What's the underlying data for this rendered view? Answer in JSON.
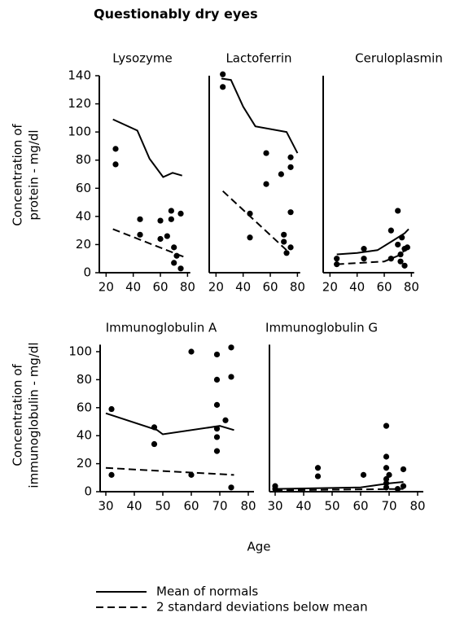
{
  "title": "Questionably dry eyes",
  "xlabel": "Age",
  "chart_data": [
    {
      "type": "line",
      "title": "Lysozyme",
      "ylabel": [
        "Concentration of",
        "protein - mg/dl"
      ],
      "xlim": [
        15,
        82
      ],
      "ylim": [
        0,
        140
      ],
      "xticks": [
        20,
        40,
        60,
        80
      ],
      "yticks": [
        0,
        20,
        40,
        60,
        80,
        100,
        120,
        140
      ],
      "series": [
        {
          "name": "Mean of normals",
          "style": "solid",
          "color": "#000",
          "x": [
            25,
            43,
            52,
            62,
            69,
            76
          ],
          "values": [
            109,
            101,
            81,
            68,
            71,
            69
          ]
        },
        {
          "name": "2 standard deviations below mean",
          "style": "dashed",
          "color": "#000",
          "x": [
            25,
            78
          ],
          "values": [
            31,
            11
          ]
        },
        {
          "style": "points",
          "color": "#000",
          "x": [
            27,
            27,
            45,
            45,
            60,
            60,
            65,
            68,
            68,
            70,
            70,
            72,
            75,
            75
          ],
          "values": [
            88,
            77,
            38,
            27,
            37,
            24,
            26,
            44,
            38,
            18,
            7,
            12,
            42,
            3
          ]
        }
      ]
    },
    {
      "type": "line",
      "title": "Lactoferrin",
      "xlim": [
        15,
        82
      ],
      "ylim": [
        0,
        140
      ],
      "xticks": [
        20,
        40,
        60,
        80
      ],
      "series": [
        {
          "name": "Mean of normals",
          "style": "solid",
          "color": "#000",
          "x": [
            24,
            31,
            40,
            49,
            72,
            80
          ],
          "values": [
            138,
            137,
            118,
            104,
            100,
            85
          ]
        },
        {
          "name": "2 standard deviations below mean",
          "style": "dashed",
          "color": "#000",
          "x": [
            25,
            72
          ],
          "values": [
            58,
            16
          ]
        },
        {
          "style": "points",
          "color": "#000",
          "x": [
            25,
            25,
            45,
            45,
            57,
            57,
            68,
            70,
            70,
            72,
            75,
            75,
            75,
            75
          ],
          "values": [
            141,
            132,
            42,
            25,
            63,
            85,
            70,
            22,
            27,
            14,
            18,
            75,
            82,
            43
          ]
        }
      ]
    },
    {
      "type": "line",
      "title": "Ceruloplasmin",
      "xlim": [
        15,
        82
      ],
      "ylim": [
        0,
        140
      ],
      "xticks": [
        20,
        40,
        60,
        80
      ],
      "series": [
        {
          "name": "Mean of normals",
          "style": "solid",
          "color": "#000",
          "x": [
            25,
            40,
            55,
            65,
            75,
            78
          ],
          "values": [
            13,
            14,
            16,
            22,
            28,
            31
          ]
        },
        {
          "name": "2 standard deviations below mean",
          "style": "dashed",
          "color": "#000",
          "x": [
            25,
            60,
            70,
            78
          ],
          "values": [
            6,
            8,
            12,
            18
          ]
        },
        {
          "style": "points",
          "color": "#000",
          "x": [
            25,
            25,
            45,
            45,
            65,
            65,
            70,
            70,
            72,
            72,
            73,
            75,
            75,
            77
          ],
          "values": [
            10,
            6,
            17,
            10,
            30,
            10,
            44,
            20,
            13,
            8,
            25,
            17,
            5,
            18
          ]
        }
      ]
    },
    {
      "type": "line",
      "title": "Immunoglobulin A",
      "ylabel": [
        "Concentration of",
        "immunoglobulin - mg/dl"
      ],
      "xlim": [
        28,
        82
      ],
      "ylim": [
        0,
        105
      ],
      "xticks": [
        30,
        40,
        50,
        60,
        70,
        80
      ],
      "yticks": [
        0,
        20,
        40,
        60,
        80,
        100
      ],
      "series": [
        {
          "name": "Mean of normals",
          "style": "solid",
          "color": "#000",
          "x": [
            30,
            48,
            50,
            70,
            75
          ],
          "values": [
            56,
            44,
            41,
            47,
            44
          ]
        },
        {
          "name": "2 standard deviations below mean",
          "style": "dashed",
          "color": "#000",
          "x": [
            30,
            75
          ],
          "values": [
            17,
            12
          ]
        },
        {
          "style": "points",
          "color": "#000",
          "x": [
            32,
            32,
            47,
            47,
            60,
            60,
            69,
            69,
            69,
            69,
            69,
            69,
            72,
            74,
            74,
            74
          ],
          "values": [
            59,
            12,
            46,
            34,
            100,
            12,
            98,
            80,
            62,
            45,
            39,
            29,
            51,
            103,
            82,
            3
          ]
        }
      ]
    },
    {
      "type": "line",
      "title": "Immunoglobulin G",
      "xlim": [
        28,
        82
      ],
      "ylim": [
        0,
        105
      ],
      "xticks": [
        30,
        40,
        50,
        60,
        70,
        80
      ],
      "series": [
        {
          "name": "Mean of normals",
          "style": "solid",
          "color": "#000",
          "x": [
            30,
            60,
            70,
            75
          ],
          "values": [
            2,
            3,
            6,
            7
          ]
        },
        {
          "name": "2 standard deviations below mean",
          "style": "dashed",
          "color": "#000",
          "x": [
            30,
            75
          ],
          "values": [
            1,
            2
          ]
        },
        {
          "style": "points",
          "color": "#000",
          "x": [
            30,
            30,
            45,
            45,
            61,
            69,
            69,
            69,
            69,
            69,
            69,
            70,
            73,
            75,
            75
          ],
          "values": [
            4,
            2,
            17,
            11,
            12,
            47,
            25,
            17,
            9,
            6,
            3,
            12,
            2,
            16,
            4
          ]
        }
      ]
    }
  ]
}
